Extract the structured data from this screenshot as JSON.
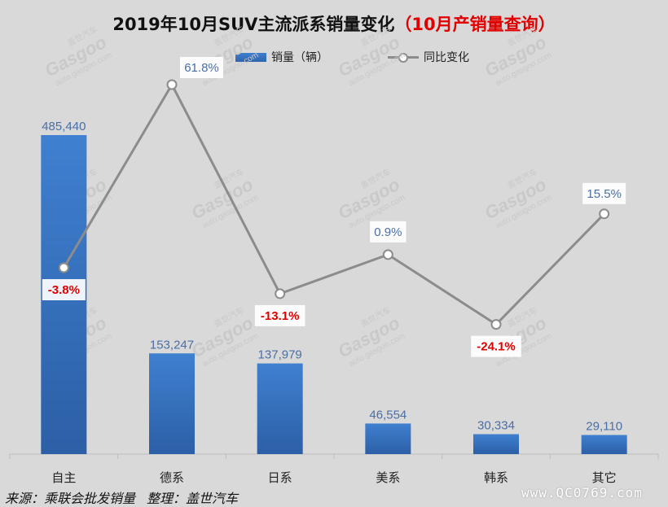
{
  "header": {
    "title_main": "2019年10月SUV主流派系销量变化",
    "title_highlight": "（10月产销量查询）"
  },
  "legend": {
    "bar_label": "销量（辆）",
    "line_label": "同比变化"
  },
  "footer": {
    "source": "来源：乘联会批发销量",
    "organizer": "整理：盖世汽车",
    "site": "www.QC0769.com"
  },
  "watermark": {
    "brand": "Gasgoo",
    "cn": "盖世汽车",
    "url": "auto.gasgoo.com"
  },
  "colors": {
    "bar_top": "#3f80d0",
    "bar_bottom": "#2c5fa6",
    "line": "#8c8c8c",
    "negative_label": "#e00000",
    "positive_label": "#4a6fa5",
    "bar_label": "#4a6fa5"
  },
  "chart_data": {
    "type": "bar",
    "title": "2019年10月SUV主流派系销量变化（10月产销量查询）",
    "categories": [
      "自主",
      "德系",
      "日系",
      "美系",
      "韩系",
      "其它"
    ],
    "series": [
      {
        "name": "销量（辆）",
        "type": "bar",
        "values": [
          485440,
          153247,
          137979,
          46554,
          30334,
          29110
        ],
        "labels": [
          "485,440",
          "153,247",
          "137,979",
          "46,554",
          "30,334",
          "29,110"
        ]
      },
      {
        "name": "同比变化",
        "type": "line",
        "values": [
          -3.8,
          61.8,
          -13.1,
          0.9,
          -24.1,
          15.5
        ],
        "labels": [
          "-3.8%",
          "61.8%",
          "-13.1%",
          "0.9%",
          "-24.1%",
          "15.5%"
        ]
      }
    ],
    "xlabel": "",
    "ylabel": "",
    "bar_ylim": [
      0,
      500000
    ],
    "line_ylim": [
      -40,
      70
    ],
    "grid": false
  }
}
